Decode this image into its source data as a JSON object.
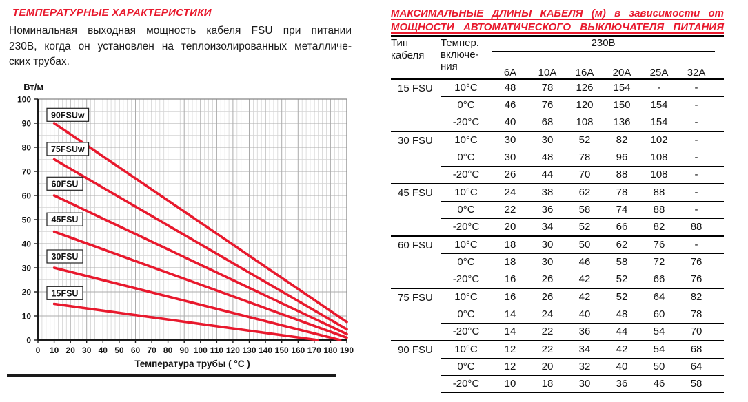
{
  "page": {
    "background": "#ffffff",
    "accent_red": "#e8192d"
  },
  "left": {
    "title": "ТЕМПЕРАТУРНЫЕ ХАРАКТЕРИСТИКИ",
    "description_lines": [
      "Номинальная выходная мощность кабеля FSU при питании",
      "230В, когда он установлен на теплоизолированных металличе-",
      "ских трубах."
    ]
  },
  "chart_data": {
    "type": "line",
    "title": "",
    "ylabel": "Вт/м",
    "xlabel": "Температура трубы ( °C )",
    "xlim": [
      0,
      190
    ],
    "ylim": [
      0,
      100
    ],
    "x_tick_step": 10,
    "y_tick_step": 10,
    "grid": "grey major grid every 10; minor grid x every 2.5, y every 5",
    "legend_position": "boxed labels inside plot at left of each curve",
    "line_color": "#e8192d",
    "series": [
      {
        "name": "90FSUw",
        "points": [
          [
            10,
            90
          ],
          [
            190,
            7.5
          ]
        ],
        "label_y": 93.5
      },
      {
        "name": "75FSUw",
        "points": [
          [
            10,
            75
          ],
          [
            190,
            4.5
          ]
        ],
        "label_y": 79.3
      },
      {
        "name": "60FSU",
        "points": [
          [
            10,
            60
          ],
          [
            190,
            2.5
          ]
        ],
        "label_y": 64.9
      },
      {
        "name": "45FSU",
        "points": [
          [
            10,
            45
          ],
          [
            190,
            1
          ]
        ],
        "label_y": 50.1
      },
      {
        "name": "30FSU",
        "points": [
          [
            10,
            30
          ],
          [
            186,
            0
          ]
        ],
        "label_y": 34.7
      },
      {
        "name": "15FSU",
        "points": [
          [
            10,
            15
          ],
          [
            172,
            0
          ]
        ],
        "label_y": 19.5
      }
    ]
  },
  "right": {
    "title_lines": [
      "МАКСИМАЛЬНЫЕ ДЛИНЫ КАБЕЛЯ (м) в зависимости от",
      "МОЩНОСТИ АВТОМАТИЧЕСКОГО ВЫКЛЮЧАТЕЛЯ ПИТАНИЯ"
    ],
    "table": {
      "col1_header": "Тип кабеля",
      "col2_header": "Темпер.\nвключе-\nния",
      "voltage_header": "230В",
      "amp_headers": [
        "6А",
        "10А",
        "16А",
        "20А",
        "25А",
        "32А"
      ],
      "groups": [
        {
          "cable": "15 FSU",
          "rows": [
            {
              "temp": "10°C",
              "values": [
                "48",
                "78",
                "126",
                "154",
                "-",
                "-"
              ]
            },
            {
              "temp": "0°C",
              "values": [
                "46",
                "76",
                "120",
                "150",
                "154",
                "-"
              ]
            },
            {
              "temp": "-20°C",
              "values": [
                "40",
                "68",
                "108",
                "136",
                "154",
                "-"
              ]
            }
          ]
        },
        {
          "cable": "30 FSU",
          "rows": [
            {
              "temp": "10°C",
              "values": [
                "30",
                "30",
                "52",
                "82",
                "102",
                "-"
              ]
            },
            {
              "temp": "0°C",
              "values": [
                "30",
                "48",
                "78",
                "96",
                "108",
                "-"
              ]
            },
            {
              "temp": "-20°C",
              "values": [
                "26",
                "44",
                "70",
                "88",
                "108",
                "-"
              ]
            }
          ]
        },
        {
          "cable": "45 FSU",
          "rows": [
            {
              "temp": "10°C",
              "values": [
                "24",
                "38",
                "62",
                "78",
                "88",
                "-"
              ]
            },
            {
              "temp": "0°C",
              "values": [
                "22",
                "36",
                "58",
                "74",
                "88",
                "-"
              ]
            },
            {
              "temp": "-20°C",
              "values": [
                "20",
                "34",
                "52",
                "66",
                "82",
                "88"
              ]
            }
          ]
        },
        {
          "cable": "60 FSU",
          "rows": [
            {
              "temp": "10°C",
              "values": [
                "18",
                "30",
                "50",
                "62",
                "76",
                "-"
              ]
            },
            {
              "temp": "0°C",
              "values": [
                "18",
                "30",
                "46",
                "58",
                "72",
                "76"
              ]
            },
            {
              "temp": "-20°C",
              "values": [
                "16",
                "26",
                "42",
                "52",
                "66",
                "76"
              ]
            }
          ]
        },
        {
          "cable": "75 FSU",
          "rows": [
            {
              "temp": "10°C",
              "values": [
                "16",
                "26",
                "42",
                "52",
                "64",
                "82"
              ]
            },
            {
              "temp": "0°C",
              "values": [
                "14",
                "24",
                "40",
                "48",
                "60",
                "78"
              ]
            },
            {
              "temp": "-20°C",
              "values": [
                "14",
                "22",
                "36",
                "44",
                "54",
                "70"
              ]
            }
          ]
        },
        {
          "cable": "90 FSU",
          "rows": [
            {
              "temp": "10°C",
              "values": [
                "12",
                "22",
                "34",
                "42",
                "54",
                "68"
              ]
            },
            {
              "temp": "0°C",
              "values": [
                "12",
                "20",
                "32",
                "40",
                "50",
                "64"
              ]
            },
            {
              "temp": "-20°C",
              "values": [
                "10",
                "18",
                "30",
                "36",
                "46",
                "58"
              ]
            }
          ]
        }
      ]
    }
  }
}
